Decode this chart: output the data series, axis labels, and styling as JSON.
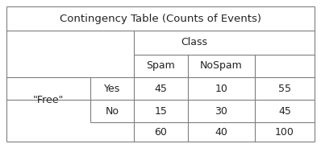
{
  "title": "Contingency Table (Counts of Events)",
  "col_header_label": "Class",
  "col_subheaders": [
    "Spam",
    "NoSpam"
  ],
  "row_header_label": "\"Free\"",
  "row_subheaders": [
    "Yes",
    "No"
  ],
  "data": [
    [
      45,
      10,
      55
    ],
    [
      15,
      30,
      45
    ]
  ],
  "col_totals": [
    60,
    40,
    100
  ],
  "bg_color": "#ffffff",
  "line_color": "#7f7f7f",
  "text_color": "#222222",
  "title_fontsize": 9.5,
  "cell_fontsize": 9,
  "header_fontsize": 9
}
